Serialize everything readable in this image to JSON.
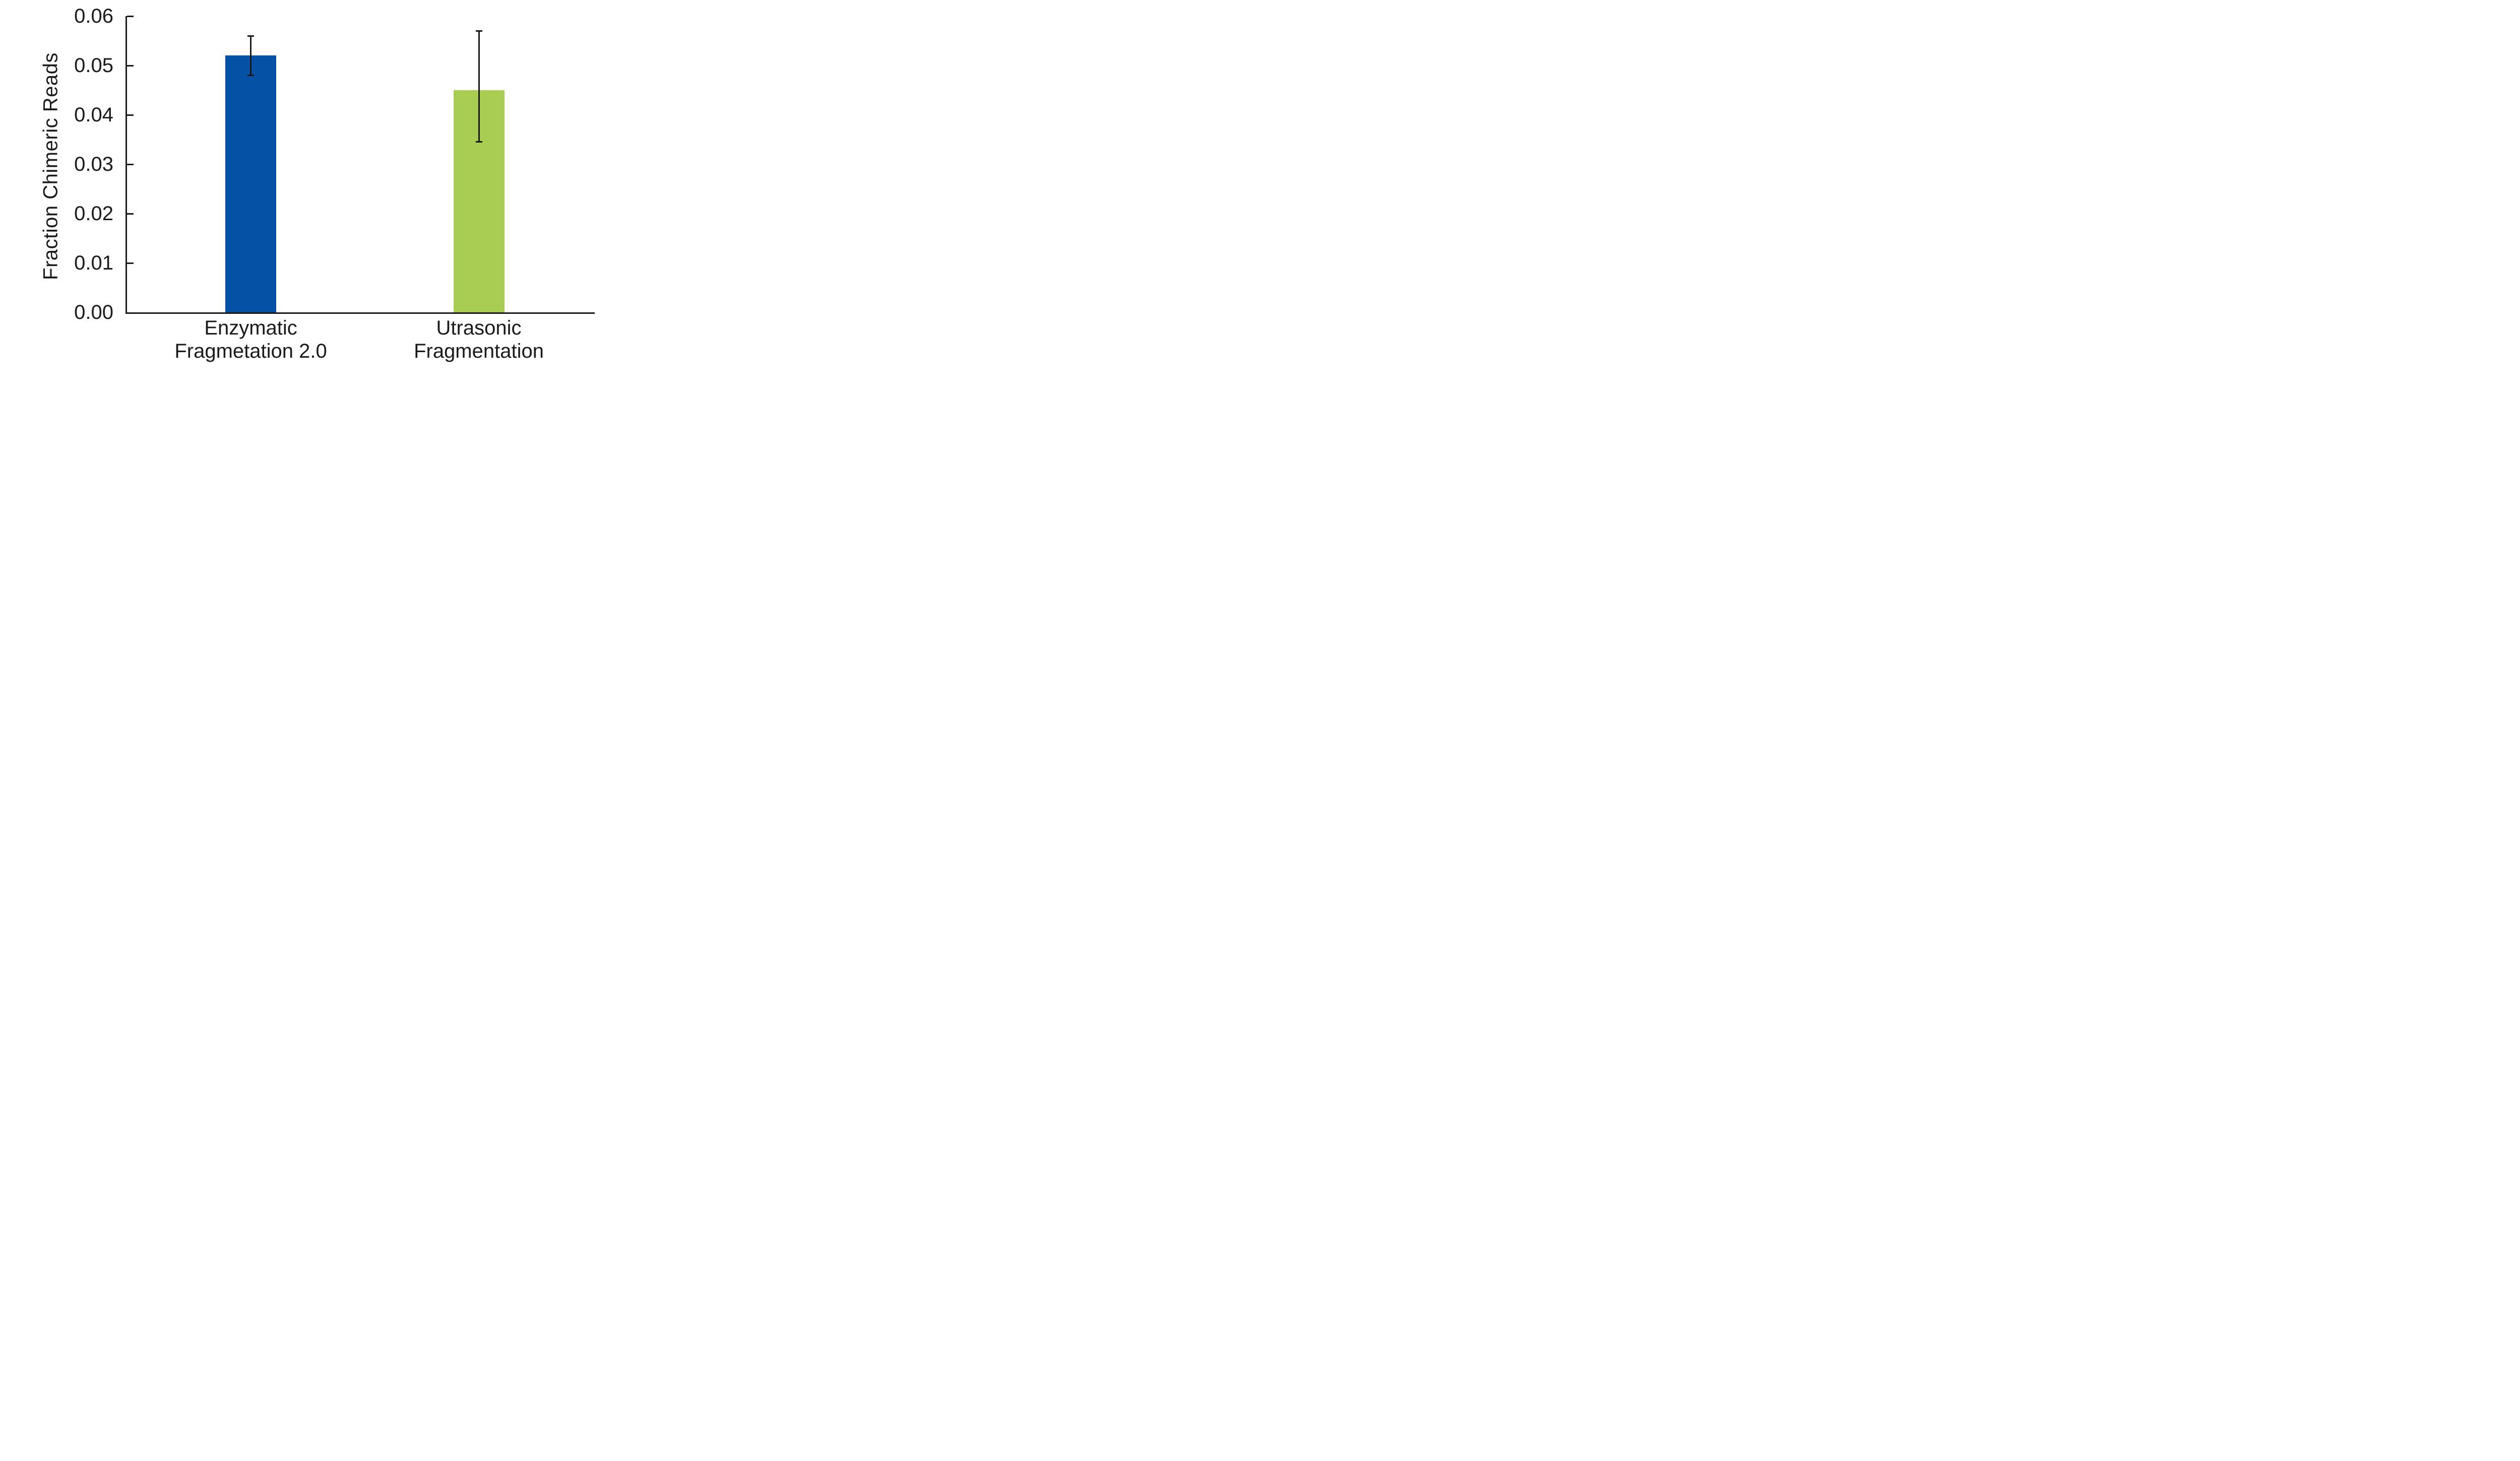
{
  "chart_data": {
    "type": "bar",
    "title": "",
    "ylabel": "Fraction Chimeric Reads",
    "xlabel": "",
    "ylim": [
      0,
      0.06
    ],
    "ytick_values": [
      0,
      0.01,
      0.02,
      0.03,
      0.04,
      0.05,
      0.06
    ],
    "ytick_labels": [
      "0.00",
      "0.01",
      "0.02",
      "0.03",
      "0.04",
      "0.05",
      "0.06"
    ],
    "categories": [
      "Enzymatic Fragmetation 2.0",
      "Utrasonic Fragmentation"
    ],
    "category_label_lines": [
      [
        "Enzymatic",
        "Fragmetation 2.0"
      ],
      [
        "Utrasonic",
        "Fragmentation"
      ]
    ],
    "series": [
      {
        "name": "Fraction Chimeric Reads",
        "values": [
          0.052,
          0.045
        ],
        "error_low": [
          0.048,
          0.0345
        ],
        "error_high": [
          0.056,
          0.057
        ],
        "bar_colors": [
          "#0551A5",
          "#A9CD52"
        ]
      }
    ],
    "grid": false,
    "legend": false,
    "tick_direction": "in",
    "axis_color": "#1A1A1A",
    "error_bar_color": "#1A1A1A",
    "text_color": "#1A1A1A",
    "background_color": "#FFFFFF"
  }
}
